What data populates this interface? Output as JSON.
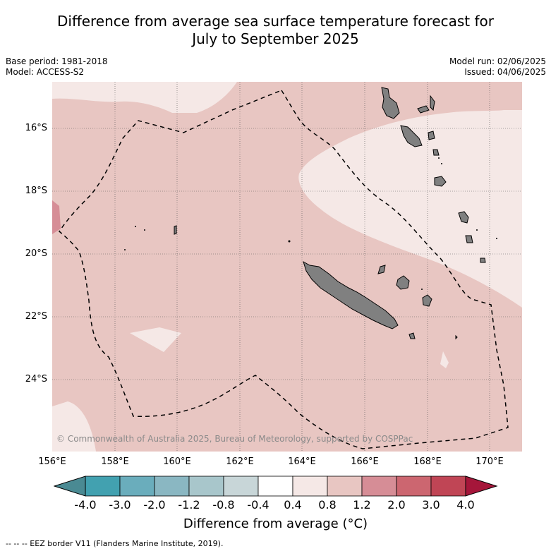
{
  "title_line1": "Difference from average sea surface temperature forecast for",
  "title_line2": "July to September 2025",
  "meta": {
    "base_period": "Base period: 1981-2018",
    "model": "Model: ACCESS-S2",
    "model_run": "Model run: 02/06/2025",
    "issued": "Issued: 04/06/2025"
  },
  "copyright": "© Commonwealth of Australia 2025, Bureau of Meteorology, supported by COSPPac",
  "lat_labels": [
    "16°S",
    "18°S",
    "20°S",
    "22°S",
    "24°S"
  ],
  "lon_labels": [
    "156°E",
    "158°E",
    "160°E",
    "162°E",
    "164°E",
    "166°E",
    "168°E",
    "170°E"
  ],
  "colorbar": {
    "label": "Difference from average (°C)",
    "ticks": [
      "-4.0",
      "-3.0",
      "-2.0",
      "-1.2",
      "-0.8",
      "-0.4",
      "0.4",
      "0.8",
      "1.2",
      "2.0",
      "3.0",
      "4.0"
    ],
    "colors": [
      "#42a1b0",
      "#6aadbc",
      "#8ab7c2",
      "#a8c6cb",
      "#c8d6d8",
      "#ffffff",
      "#f5e8e6",
      "#e8c6c2",
      "#d68d96",
      "#cc6670",
      "#c04555"
    ],
    "under_color": "#4a8a93",
    "over_color": "#a5163a"
  },
  "map_colors": {
    "band_04_08": "#f5e8e6",
    "band_08_12": "#e8c6c2",
    "band_12_20": "#d68d96",
    "land": "#808080"
  },
  "footnote": "--  --  -- EEZ border V11 (Flanders Marine Institute, 2019)."
}
